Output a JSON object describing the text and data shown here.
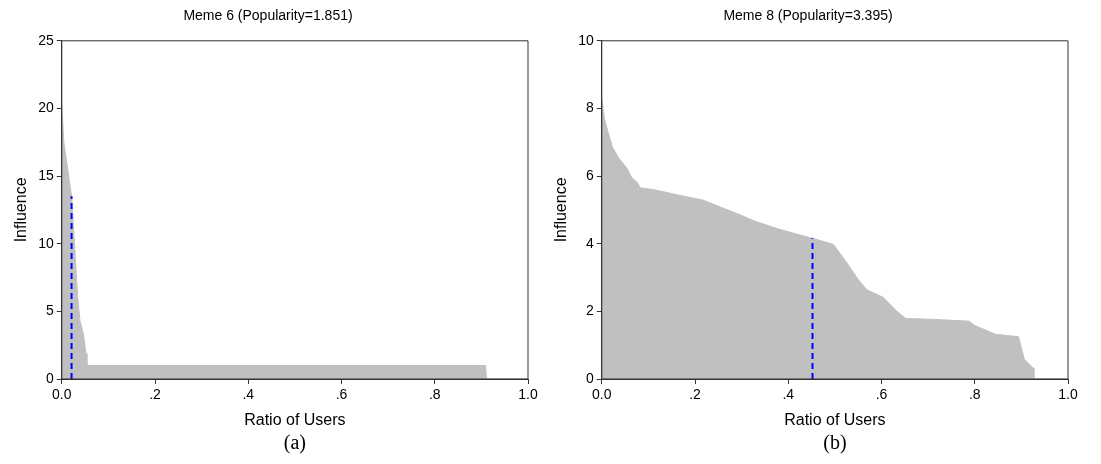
{
  "chart_data": [
    {
      "type": "area",
      "title": "Meme 6 (Popularity=1.851)",
      "xlabel": "Ratio of Users",
      "ylabel": "Influence",
      "annotations": [
        "(a)"
      ],
      "xlim": [
        0,
        1
      ],
      "ylim": [
        0,
        25
      ],
      "xticks": [
        {
          "value": 0,
          "label": "0.0"
        },
        {
          "value": 0.2,
          "label": ".2"
        },
        {
          "value": 0.4,
          "label": ".4"
        },
        {
          "value": 0.6,
          "label": ".6"
        },
        {
          "value": 0.8,
          "label": ".8"
        },
        {
          "value": 1,
          "label": "1.0"
        }
      ],
      "yticks": [
        0,
        5,
        10,
        15,
        20,
        25
      ],
      "grid": false,
      "legend": false,
      "series": [
        {
          "color": "#c0c0c0",
          "x": [
            0,
            0.0045,
            0.012,
            0.021,
            0.027,
            0.034,
            0.039,
            0.046,
            0.052,
            0.054,
            0.909,
            0.911,
            1
          ],
          "values": [
            20.2,
            17.5,
            15.7,
            13.5,
            10.1,
            6.1,
            4.3,
            3.4,
            1.9,
            1.0,
            1.0,
            0,
            0
          ]
        },
        {
          "type": "line",
          "color": "#0000ff",
          "line_style": "dashed",
          "x": [
            0.021,
            0.021
          ],
          "values": [
            0,
            13.5
          ]
        }
      ]
    },
    {
      "type": "area",
      "title": "Meme 8 (Popularity=3.395)",
      "xlabel": "Ratio of Users",
      "ylabel": "Influence",
      "annotations": [
        "(b)"
      ],
      "xlim": [
        0,
        1
      ],
      "ylim": [
        0,
        10
      ],
      "xticks": [
        {
          "value": 0,
          "label": "0.0"
        },
        {
          "value": 0.2,
          "label": ".2"
        },
        {
          "value": 0.4,
          "label": ".4"
        },
        {
          "value": 0.6,
          "label": ".6"
        },
        {
          "value": 0.8,
          "label": ".8"
        },
        {
          "value": 1,
          "label": "1.0"
        }
      ],
      "yticks": [
        0,
        2,
        4,
        6,
        8,
        10
      ],
      "grid": false,
      "legend": false,
      "series": [
        {
          "color": "#c0c0c0",
          "x": [
            0,
            0.005,
            0.013,
            0.023,
            0.036,
            0.054,
            0.064,
            0.076,
            0.083,
            0.111,
            0.164,
            0.217,
            0.255,
            0.285,
            0.33,
            0.376,
            0.414,
            0.452,
            0.497,
            0.508,
            0.527,
            0.55,
            0.569,
            0.603,
            0.633,
            0.652,
            0.701,
            0.788,
            0.8,
            0.845,
            0.894,
            0.906,
            0.917,
            0.925,
            0.927,
            1
          ],
          "values": [
            8.31,
            7.74,
            7.32,
            6.85,
            6.54,
            6.23,
            5.96,
            5.81,
            5.65,
            5.6,
            5.44,
            5.29,
            5.08,
            4.92,
            4.66,
            4.45,
            4.3,
            4.16,
            3.98,
            3.77,
            3.41,
            2.94,
            2.63,
            2.42,
            2.0,
            1.79,
            1.77,
            1.71,
            1.58,
            1.32,
            1.25,
            0.59,
            0.44,
            0.33,
            0,
            0
          ]
        },
        {
          "type": "line",
          "color": "#0000ff",
          "line_style": "dashed",
          "x": [
            0.452,
            0.452
          ],
          "values": [
            0,
            4.16
          ]
        }
      ]
    }
  ]
}
